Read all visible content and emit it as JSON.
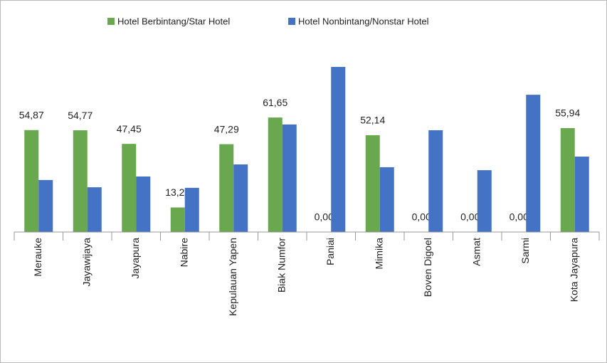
{
  "chart_data": {
    "type": "bar",
    "categories": [
      "Merauke",
      "Jayawijaya",
      "Jayapura",
      "Nabire",
      "Kepulauan Yapen",
      "Biak Numfor",
      "Paniai",
      "Mimika",
      "Boven Digoel",
      "Asmat",
      "Sarmi",
      "Kota Jayapura"
    ],
    "series": [
      {
        "name": "Hotel Berbintang/Star Hotel",
        "color": "#6aa84f",
        "values": [
          54.87,
          54.77,
          47.45,
          13.22,
          47.29,
          61.65,
          0,
          52.14,
          0,
          0,
          0,
          55.94
        ],
        "value_labels": [
          "54,87",
          "54,77",
          "47,45",
          "13,22",
          "47,29",
          "61,65",
          "0,00",
          "52,14",
          "0,00",
          "0,00",
          "0,00",
          "55,94"
        ]
      },
      {
        "name": "Hotel Nonbintang/Nonstar Hotel",
        "color": "#4472c4",
        "values": [
          28.0,
          24.1,
          29.9,
          23.8,
          36.4,
          57.9,
          88.9,
          34.9,
          54.8,
          33.3,
          73.9,
          40.6
        ]
      }
    ],
    "ylim": [
      0,
      100
    ],
    "legend": "top"
  }
}
